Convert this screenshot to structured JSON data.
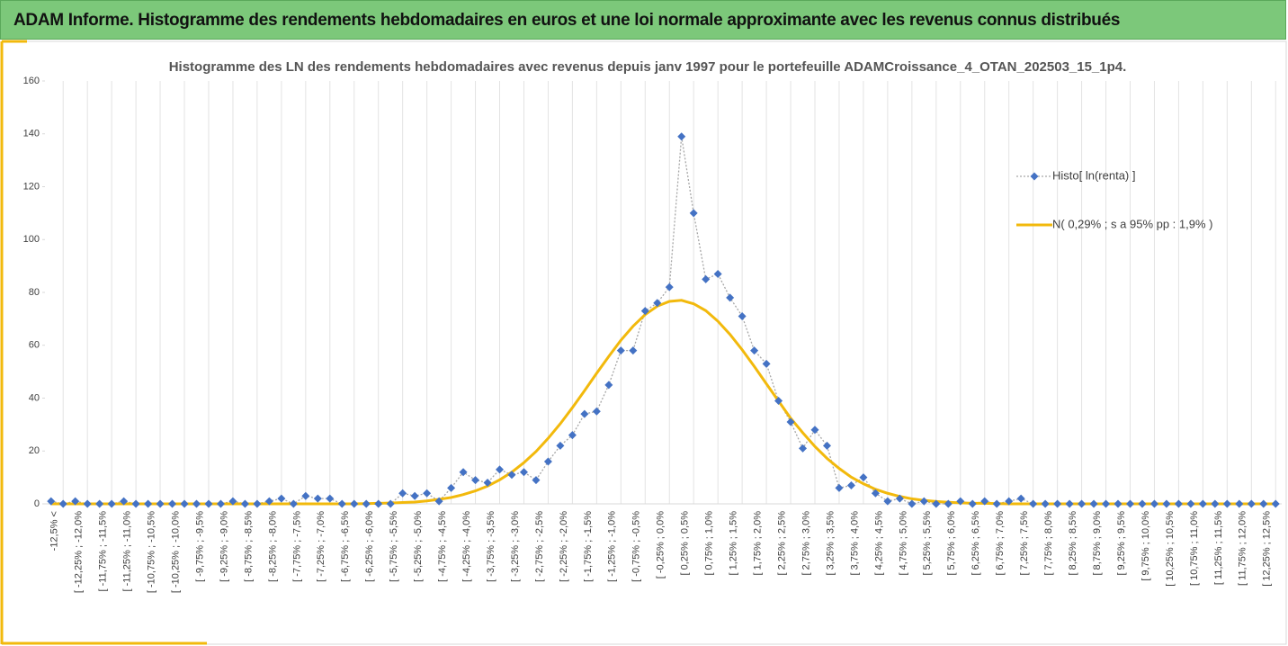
{
  "header": {
    "title": "ADAM Informe. Histogramme des rendements hebdomadaires en euros et une loi normale approximante avec les revenus connus distribués"
  },
  "chart_data": {
    "type": "line",
    "title": "Histogramme des LN des rendements hebdomadaires avec revenus depuis janv 1997 pour le portefeuille ADAMCroissance_4_OTAN_202503_15_1p4.",
    "categories": [
      "-12,5% <",
      null,
      "[ -12,25% ; -12,0%",
      null,
      "[ -11,75% ; -11,5%",
      null,
      "[ -11,25% ; -11,0%",
      null,
      "[ -10,75% ; -10,5%",
      null,
      "[ -10,25% ; -10,0%",
      null,
      "[ -9,75% ; -9,5%",
      null,
      "[ -9,25% ; -9,0%",
      null,
      "[ -8,75% ; -8,5%",
      null,
      "[ -8,25% ; -8,0%",
      null,
      "[ -7,75% ; -7,5%",
      null,
      "[ -7,25% ; -7,0%",
      null,
      "[ -6,75% ; -6,5%",
      null,
      "[ -6,25% ; -6,0%",
      null,
      "[ -5,75% ; -5,5%",
      null,
      "[ -5,25% ; -5,0%",
      null,
      "[ -4,75% ; -4,5%",
      null,
      "[ -4,25% ; -4,0%",
      null,
      "[ -3,75% ; -3,5%",
      null,
      "[ -3,25% ; -3,0%",
      null,
      "[ -2,75% ; -2,5%",
      null,
      "[ -2,25% ; -2,0%",
      null,
      "[ -1,75% ; -1,5%",
      null,
      "[ -1,25% ; -1,0%",
      null,
      "[ -0,75% ; -0,5%",
      null,
      "[ -0,25% ; 0,0%",
      null,
      "[ 0,25% ; 0,5%",
      null,
      "[ 0,75% ; 1,0%",
      null,
      "[ 1,25% ; 1,5%",
      null,
      "[ 1,75% ; 2,0%",
      null,
      "[ 2,25% ; 2,5%",
      null,
      "[ 2,75% ; 3,0%",
      null,
      "[ 3,25% ; 3,5%",
      null,
      "[ 3,75% ; 4,0%",
      null,
      "[ 4,25% ; 4,5%",
      null,
      "[ 4,75% ; 5,0%",
      null,
      "[ 5,25% ; 5,5%",
      null,
      "[ 5,75% ; 6,0%",
      null,
      "[ 6,25% ; 6,5%",
      null,
      "[ 6,75% ; 7,0%",
      null,
      "[ 7,25% ; 7,5%",
      null,
      "[ 7,75% ; 8,0%",
      null,
      "[ 8,25% ; 8,5%",
      null,
      "[ 8,75% ; 9,0%",
      null,
      "[ 9,25% ; 9,5%",
      null,
      "[ 9,75% ; 10,0%",
      null,
      "[ 10,25% ; 10,5%",
      null,
      "[ 10,75% ; 11,0%",
      null,
      "[ 11,25% ; 11,5%",
      null,
      "[ 11,75% ; 12,0%",
      null,
      "[ 12,25% ; 12,5%",
      null
    ],
    "series": [
      {
        "name": "Histo[ ln(renta) ]",
        "color": "#4472c4",
        "line_color": "#a6a6a6",
        "values": [
          1,
          0,
          1,
          0,
          0,
          0,
          1,
          0,
          0,
          0,
          0,
          0,
          0,
          0,
          0,
          1,
          0,
          0,
          1,
          2,
          0,
          3,
          2,
          2,
          0,
          0,
          0,
          0,
          0,
          4,
          3,
          4,
          1,
          6,
          12,
          9,
          8,
          13,
          11,
          12,
          9,
          16,
          22,
          26,
          34,
          35,
          45,
          58,
          58,
          73,
          76,
          82,
          139,
          110,
          85,
          87,
          78,
          71,
          58,
          53,
          39,
          31,
          21,
          28,
          22,
          6,
          7,
          10,
          4,
          1,
          2,
          0,
          1,
          0,
          0,
          1,
          0,
          1,
          0,
          1,
          2,
          0,
          0,
          0,
          0,
          0,
          0,
          0,
          0,
          0,
          0,
          0,
          0,
          0,
          0,
          0,
          0,
          0,
          0,
          0,
          0,
          0
        ]
      },
      {
        "name": "N( 0,29% ; s a 95% pp : 1,9% )",
        "color": "#f2b90c",
        "values": [
          0,
          0,
          0,
          0,
          0,
          0,
          0,
          0,
          0,
          0,
          0,
          0,
          0,
          0,
          0,
          0,
          0,
          0,
          0,
          0,
          0,
          0,
          0,
          0,
          0,
          0,
          0.1,
          0.2,
          0.3,
          0.5,
          0.7,
          1.1,
          1.7,
          2.4,
          3.5,
          4.9,
          6.7,
          9.1,
          12,
          15.6,
          19.8,
          24.8,
          30.3,
          36.4,
          42.8,
          49.4,
          55.8,
          61.9,
          67.2,
          71.6,
          74.8,
          76.6,
          77,
          75.7,
          73.1,
          69.1,
          64.1,
          58.3,
          52,
          45.4,
          38.9,
          32.4,
          26.9,
          21.7,
          17.2,
          13.4,
          10.1,
          7.6,
          5.5,
          4,
          2.8,
          1.9,
          1.3,
          0.9,
          0.6,
          0.4,
          0.2,
          0.2,
          0.1,
          0,
          0,
          0,
          0,
          0,
          0,
          0,
          0,
          0,
          0,
          0,
          0,
          0,
          0,
          0,
          0,
          0,
          0,
          0,
          0,
          0,
          0,
          0
        ]
      }
    ],
    "ylim": [
      0,
      160
    ],
    "yticks": [
      0,
      20,
      40,
      60,
      80,
      100,
      120,
      140,
      160
    ],
    "xgrid": true,
    "legend": "right"
  }
}
